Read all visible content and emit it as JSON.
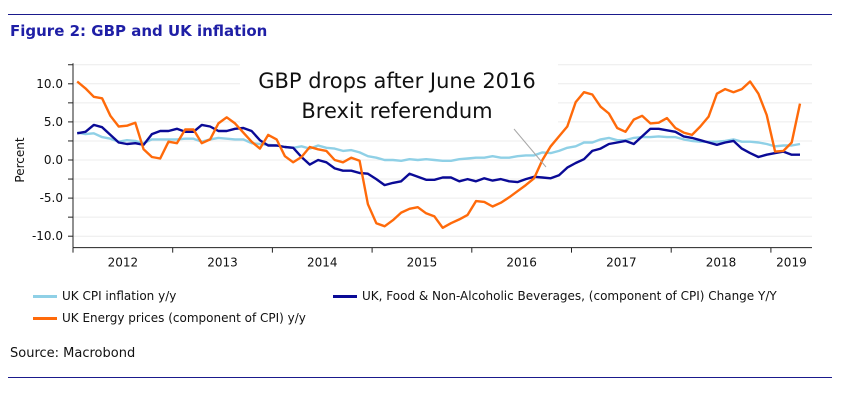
{
  "title": "Figure 2: GBP and UK inflation",
  "source": "Source: Macrobond",
  "chart_data": {
    "type": "line",
    "title": "",
    "xlabel": "",
    "ylabel": "Percent",
    "ylim": [
      -11.5,
      12.7
    ],
    "yticks": [
      10,
      5,
      0,
      -5,
      -10
    ],
    "ytick_labels": [
      "10.0",
      "5.0",
      "0.0",
      "-5.0",
      "-10.0"
    ],
    "x_tick_labels": [
      "2012",
      "2013",
      "2014",
      "2015",
      "2016",
      "2017",
      "2018",
      "2019"
    ],
    "x_start": "2012-01",
    "x_end": "2019-04",
    "frequency": "monthly",
    "grid": true,
    "legend_position": "bottom",
    "annotation": {
      "lines": [
        "GBP drops after June 2016",
        "Brexit referendum"
      ],
      "points_to": "2016-07"
    },
    "series": [
      {
        "name": "UK CPI inflation y/y",
        "color": "#8fd0e6",
        "values": [
          3.6,
          3.4,
          3.5,
          3.0,
          2.8,
          2.4,
          2.6,
          2.5,
          2.2,
          2.7,
          2.7,
          2.7,
          2.7,
          2.8,
          2.8,
          2.4,
          2.7,
          2.9,
          2.8,
          2.7,
          2.7,
          2.2,
          2.1,
          2.0,
          1.9,
          1.7,
          1.6,
          1.8,
          1.5,
          1.9,
          1.6,
          1.5,
          1.2,
          1.3,
          1.0,
          0.5,
          0.3,
          0.0,
          0.0,
          -0.1,
          0.1,
          0.0,
          0.1,
          0.0,
          -0.1,
          -0.1,
          0.1,
          0.2,
          0.3,
          0.3,
          0.5,
          0.3,
          0.3,
          0.5,
          0.6,
          0.6,
          1.0,
          0.9,
          1.2,
          1.6,
          1.8,
          2.3,
          2.3,
          2.7,
          2.9,
          2.6,
          2.6,
          2.9,
          3.0,
          3.0,
          3.1,
          3.0,
          3.0,
          2.7,
          2.5,
          2.4,
          2.4,
          2.4,
          2.5,
          2.7,
          2.4,
          2.4,
          2.3,
          2.1,
          1.8,
          1.9,
          1.9,
          2.1
        ]
      },
      {
        "name": "UK, Food & Non-Alcoholic Beverages, (component of CPI) Change Y/Y",
        "color": "#0a0a96",
        "values": [
          3.5,
          3.7,
          4.6,
          4.3,
          3.3,
          2.3,
          2.1,
          2.2,
          2.0,
          3.4,
          3.8,
          3.8,
          4.1,
          3.7,
          3.7,
          4.6,
          4.4,
          3.8,
          3.8,
          4.1,
          4.2,
          3.8,
          2.6,
          1.9,
          1.9,
          1.7,
          1.6,
          0.4,
          -0.6,
          0.0,
          -0.3,
          -1.1,
          -1.4,
          -1.4,
          -1.7,
          -1.8,
          -2.5,
          -3.3,
          -3.0,
          -2.8,
          -1.8,
          -2.2,
          -2.6,
          -2.6,
          -2.3,
          -2.3,
          -2.8,
          -2.5,
          -2.8,
          -2.4,
          -2.7,
          -2.5,
          -2.8,
          -2.9,
          -2.5,
          -2.2,
          -2.3,
          -2.4,
          -2.0,
          -1.0,
          -0.4,
          0.1,
          1.2,
          1.5,
          2.1,
          2.3,
          2.5,
          2.1,
          3.1,
          4.1,
          4.1,
          3.9,
          3.7,
          3.1,
          2.9,
          2.6,
          2.3,
          2.0,
          2.3,
          2.5,
          1.5,
          0.9,
          0.4,
          0.7,
          0.9,
          1.1,
          0.7,
          0.7
        ]
      },
      {
        "name": "UK Energy prices (component of CPI) y/y",
        "color": "#ff6a0a",
        "values": [
          10.3,
          9.4,
          8.3,
          8.1,
          5.8,
          4.4,
          4.5,
          4.9,
          1.4,
          0.4,
          0.2,
          2.4,
          2.2,
          4.0,
          4.0,
          2.2,
          2.7,
          4.8,
          5.6,
          4.8,
          3.6,
          2.4,
          1.5,
          3.3,
          2.7,
          0.5,
          -0.3,
          0.4,
          1.7,
          1.4,
          1.2,
          0.0,
          -0.3,
          0.3,
          -0.1,
          -5.8,
          -8.3,
          -8.7,
          -7.9,
          -6.9,
          -6.4,
          -6.2,
          -7.0,
          -7.4,
          -8.9,
          -8.3,
          -7.8,
          -7.2,
          -5.4,
          -5.5,
          -6.1,
          -5.6,
          -4.9,
          -4.1,
          -3.3,
          -2.4,
          0.0,
          1.8,
          3.1,
          4.4,
          7.6,
          8.9,
          8.6,
          7.0,
          6.1,
          4.2,
          3.7,
          5.3,
          5.8,
          4.8,
          4.9,
          5.5,
          4.2,
          3.6,
          3.3,
          4.4,
          5.7,
          8.7,
          9.3,
          8.9,
          9.3,
          10.3,
          8.7,
          5.9,
          1.1,
          1.2,
          2.3,
          7.4
        ]
      }
    ]
  }
}
